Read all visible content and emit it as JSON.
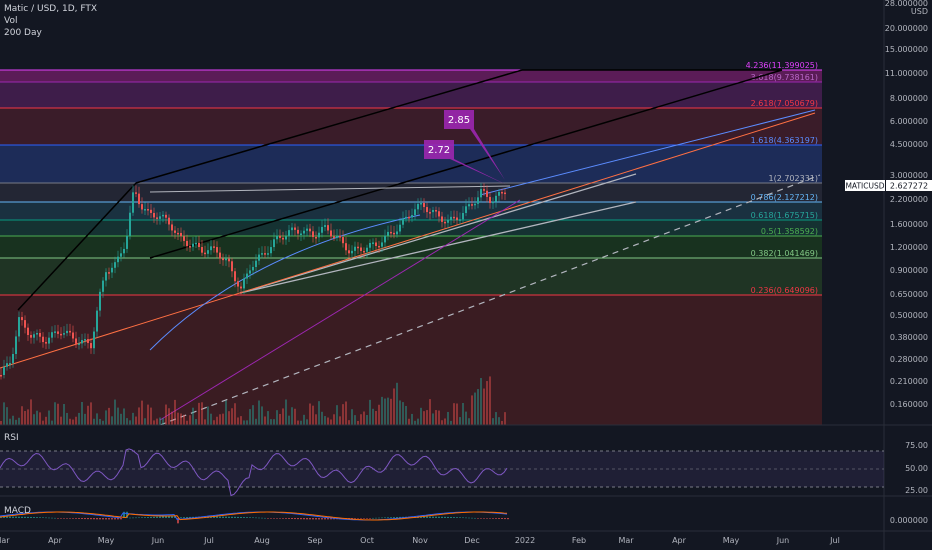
{
  "header": {
    "title": "Matic / USD, 1D, FTX",
    "line2": "Vol",
    "line3": "200 Day"
  },
  "price_axis": {
    "currency": "USD",
    "ticks": [
      "28.000000",
      "20.000000",
      "15.000000",
      "11.000000",
      "8.000000",
      "6.000000",
      "4.500000",
      "3.000000",
      "2.200000",
      "1.600000",
      "1.200000",
      "0.900000",
      "0.650000",
      "0.500000",
      "0.380000",
      "0.280000",
      "0.210000",
      "0.160000"
    ]
  },
  "last_price": {
    "symbol": "MATICUSD",
    "value": "2.627272"
  },
  "fib_levels": [
    {
      "label": "4.236(11.399025)",
      "color": "#e040fb"
    },
    {
      "label": "3.618(9.738161)",
      "color": "#9c27b0"
    },
    {
      "label": "2.618(7.050679)",
      "color": "#f23645"
    },
    {
      "label": "1.618(4.363197)",
      "color": "#2962ff"
    },
    {
      "label": "1(2.702331)",
      "color": "#787b86"
    },
    {
      "label": "0.786(2.127212)",
      "color": "#64b5f6"
    },
    {
      "label": "0.618(1.675715)",
      "color": "#089981"
    },
    {
      "label": "0.5(1.358592)",
      "color": "#4caf50"
    },
    {
      "label": "0.382(1.041469)",
      "color": "#81c784"
    },
    {
      "label": "0.236(0.649096)",
      "color": "#f23645"
    }
  ],
  "callouts": [
    {
      "text": "2.85"
    },
    {
      "text": "2.72"
    }
  ],
  "rsi": {
    "title": "RSI",
    "ticks": [
      "75.00",
      "50.00",
      "25.00"
    ]
  },
  "macd": {
    "title": "MACD",
    "ticks": [
      "0.000000"
    ]
  },
  "time_axis": {
    "labels": [
      "Mar",
      "Apr",
      "May",
      "Jun",
      "Jul",
      "Aug",
      "Sep",
      "Oct",
      "Nov",
      "Dec",
      "2022",
      "Feb",
      "Mar",
      "Apr",
      "May",
      "Jun",
      "Jul"
    ]
  },
  "colors": {
    "background": "#131722",
    "candle_up": "#26a69a",
    "candle_down": "#ef5350",
    "rsi_line": "#7e57c2",
    "last_price_badge": "#ffffff"
  }
}
